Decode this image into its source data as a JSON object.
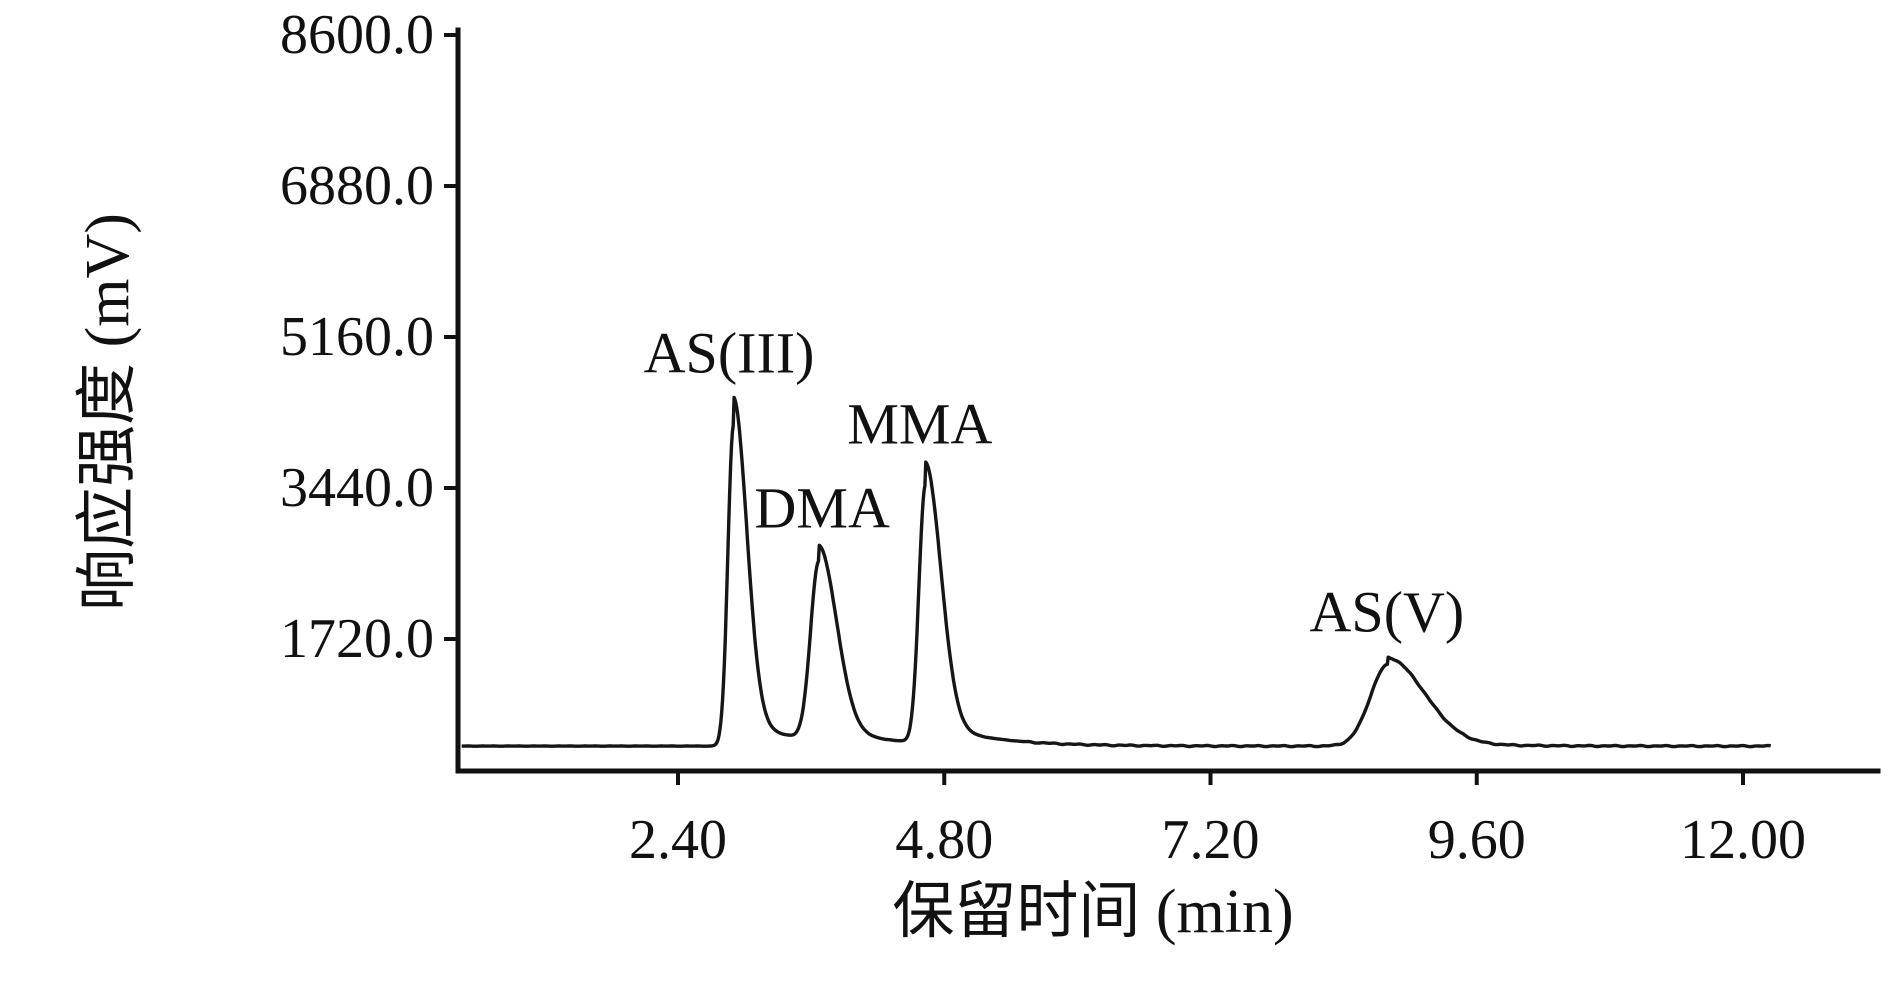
{
  "figure": {
    "background": "#ffffff",
    "line_color": "#161616",
    "axis_color": "#111111"
  },
  "chart_data": {
    "type": "line",
    "title": "",
    "xlabel": "保留时间 (min)",
    "ylabel": "响应强度 (mV)",
    "legend": "none",
    "grid": false,
    "x_ticks": [
      2.4,
      4.8,
      7.2,
      9.6,
      12.0
    ],
    "x_tick_labels": [
      "2.40",
      "4.80",
      "7.20",
      "9.60",
      "12.00"
    ],
    "y_ticks": [
      8600,
      6880,
      5160,
      3440,
      1720
    ],
    "y_tick_labels": [
      "8600.0",
      "6880.0",
      "5160.0",
      "3440.0",
      "1720.0"
    ],
    "xlim": [
      0.42,
      13.2
    ],
    "ylim": [
      0,
      8600
    ],
    "baseline_mv": 500,
    "trace_start_min": 0.45,
    "trace_end_min": 12.25,
    "peaks": [
      {
        "name": "AS(III)",
        "retention_time_min": 2.9,
        "peak_height_mv": 4480,
        "sigma_left": 0.05,
        "sigma_right": 0.12,
        "label_t": 2.86,
        "label_v": 4980
      },
      {
        "name": "DMA",
        "retention_time_min": 3.67,
        "peak_height_mv": 2720,
        "sigma_left": 0.075,
        "sigma_right": 0.16,
        "label_t": 3.7,
        "label_v": 3210
      },
      {
        "name": "MMA",
        "retention_time_min": 4.63,
        "peak_height_mv": 3700,
        "sigma_left": 0.058,
        "sigma_right": 0.14,
        "label_t": 4.58,
        "label_v": 4170
      },
      {
        "name": "AS(V)",
        "retention_time_min": 8.8,
        "peak_height_mv": 1510,
        "sigma_left": 0.16,
        "sigma_right": 0.33,
        "label_t": 8.79,
        "label_v": 2030
      }
    ]
  }
}
